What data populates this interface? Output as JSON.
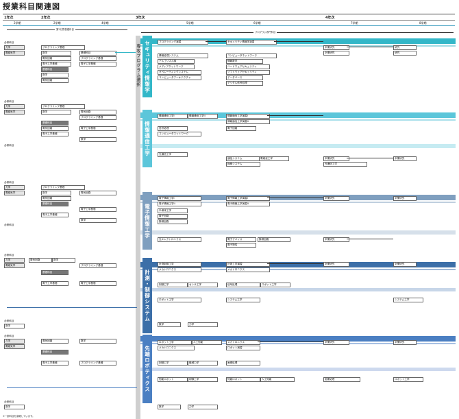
{
  "title": "授業科目関連図",
  "years": {
    "y1": "1年次",
    "y2": "2年次",
    "y3": "3年次",
    "y4": "4年次"
  },
  "semesters": {
    "s2": "2学期",
    "s4": "4学期",
    "s5": "5学期",
    "s6": "6学期",
    "s7": "7学期",
    "s8": "8学期"
  },
  "bars": {
    "common": "第2分野基礎科目",
    "program": "プログラム専門科目"
  },
  "side_label": "専攻プログラム選択",
  "programs": [
    {
      "name": "セキュリティ情報学",
      "color": "#33b7c8"
    },
    {
      "name": "情報通信工学",
      "color": "#5cc6da"
    },
    {
      "name": "電子情報工学",
      "color": "#7f9fbf"
    },
    {
      "name": "計測・制御システム",
      "color": "#3c6fa8"
    },
    {
      "name": "先端ロボティクス",
      "color": "#4b7fc2"
    }
  ],
  "labels": {
    "basic_group": "必修科目",
    "physics": "力学",
    "electric": "電磁気学",
    "circuit": "電気回路",
    "basic_exp": "基礎科目",
    "math": "数学",
    "elec_basic": "電子工学基礎",
    "intro_prog": "プログラミング基礎",
    "footnote": "※一部科目を省略しています。"
  },
  "sec": {
    "c1": "プログラミング演習",
    "c2": "セキュリティ情報学演習",
    "c3": "情報処理システム",
    "c4": "コンピュータネットワーク",
    "c5": "情報数学",
    "c6": "ハードウェアセキュリティ",
    "c7": "ソフトウェアセキュリティ",
    "c8": "データベース",
    "c9": "デジタル信号処理",
    "c10": "卒業研究",
    "c11": "研究",
    "c12": "アルゴリズム論",
    "c13": "メディアネットワーク",
    "c14": "オペレーティングシステム",
    "c15": "コンピュータアーキテクチャ"
  },
  "com": {
    "c1": "情報通信工学I",
    "c2": "情報通信工学II",
    "c3": "情報通信工学演習I",
    "c4": "情報通信工学演習II",
    "c5": "信号処理",
    "c6": "電子回路",
    "c7": "コンピュータネットワーク",
    "c8": "通信システム",
    "c9": "電磁波工学",
    "c10": "無線システム",
    "c11": "卒業研究",
    "c12": "光通信工学"
  },
  "ele": {
    "c1": "電子情報工学I",
    "c2": "電子情報工学II",
    "c3": "電子情報工学演習I",
    "c4": "電子情報工学演習II",
    "c5": "半導体工学",
    "c6": "電子回路",
    "c7": "集積回路",
    "c8": "電子デバイス",
    "c9": "卒業研究",
    "c10": "光エレクトロニクス",
    "c11": "電子物性"
  },
  "ctl": {
    "c1": "計測制御工学",
    "c2": "メカトロニクス",
    "c3": "制御工学",
    "c4": "センサ工学",
    "c5": "ロボット工学",
    "c6": "システム工学",
    "c7": "卒業研究",
    "c8": "計測工学演習",
    "c9": "信号処理"
  },
  "rob": {
    "c1": "ロボット工学",
    "c2": "メカトロニクス",
    "c3": "人工知能",
    "c4": "制御工学",
    "c5": "機械力学",
    "c6": "知能ロボット",
    "c7": "卒業研究",
    "c8": "ロボット演習",
    "c9": "画像処理"
  }
}
